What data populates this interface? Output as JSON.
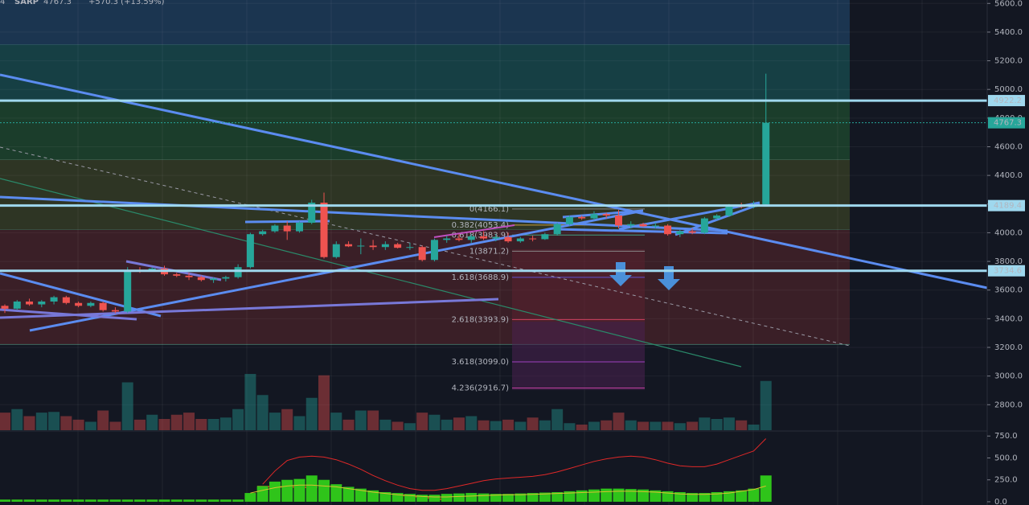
{
  "chart_data": {
    "type": "candlestick",
    "title": "SARP",
    "last_price": "4767.3",
    "change": "+570.3 (+13.59%)",
    "interval": "4",
    "ylim": [
      2622,
      5624
    ],
    "yticks": [
      {
        "value": 2800,
        "label": "2800.0"
      },
      {
        "value": 3000,
        "label": "3000.0"
      },
      {
        "value": 3200,
        "label": "3200.0"
      },
      {
        "value": 3400,
        "label": "3400.0"
      },
      {
        "value": 3600,
        "label": "3600.0"
      },
      {
        "value": 3800,
        "label": "3800.0"
      },
      {
        "value": 4000,
        "label": "4000.0"
      },
      {
        "value": 4200,
        "label": "4200.0"
      },
      {
        "value": 4400,
        "label": "4400.0"
      },
      {
        "value": 4600,
        "label": "4600.0"
      },
      {
        "value": 4800,
        "label": "4800.0"
      },
      {
        "value": 5000,
        "label": "5000.0"
      },
      {
        "value": 5200,
        "label": "5200.0"
      },
      {
        "value": 5400,
        "label": "5400.0"
      },
      {
        "value": 5600,
        "label": "5600.0"
      }
    ],
    "up_color": "#26a69a",
    "down_color": "#ef5350",
    "open": [
      3490,
      3470,
      3520,
      3500,
      3520,
      3550,
      3510,
      3490,
      3510,
      3460,
      3450,
      3740,
      3735,
      3750,
      3710,
      3700,
      3690,
      3670,
      3680,
      3690,
      3760,
      3990,
      4010,
      4050,
      4010,
      4070,
      4210,
      3830,
      3920,
      3905,
      3910,
      3900,
      3920,
      3895,
      3900,
      3810,
      3950,
      3960,
      3950,
      3975,
      3960,
      3970,
      3940,
      3960,
      3955,
      3990,
      4060,
      4110,
      4100,
      4130,
      4120,
      4050,
      4060,
      4045,
      4050,
      3990,
      4010,
      4000,
      4100,
      4120,
      4190,
      4180,
      4197
    ],
    "high": [
      3500,
      3530,
      3540,
      3530,
      3560,
      3560,
      3520,
      3520,
      3520,
      3480,
      3760,
      3760,
      3760,
      3770,
      3720,
      3720,
      3700,
      3690,
      3700,
      3780,
      4000,
      4020,
      4060,
      4080,
      4080,
      4230,
      4280,
      3940,
      3940,
      3960,
      3950,
      3940,
      3930,
      3930,
      3910,
      3960,
      3980,
      3990,
      3990,
      4010,
      3990,
      4000,
      3970,
      3980,
      4000,
      4070,
      4120,
      4120,
      4150,
      4140,
      4160,
      4080,
      4070,
      4070,
      4060,
      4020,
      4030,
      4110,
      4130,
      4200,
      4210,
      4220,
      5110
    ],
    "low": [
      3440,
      3460,
      3490,
      3480,
      3500,
      3500,
      3480,
      3480,
      3450,
      3440,
      3440,
      3720,
      3730,
      3700,
      3690,
      3670,
      3660,
      3650,
      3660,
      3680,
      3750,
      3980,
      4000,
      3950,
      4000,
      4060,
      3820,
      3820,
      3900,
      3850,
      3880,
      3880,
      3890,
      3880,
      3800,
      3800,
      3930,
      3940,
      3930,
      3950,
      3940,
      3930,
      3930,
      3940,
      3950,
      3980,
      4050,
      4090,
      4090,
      4100,
      4030,
      4030,
      4040,
      4030,
      3980,
      3970,
      3990,
      3990,
      4090,
      4110,
      4170,
      4170,
      4190
    ],
    "close": [
      3470,
      3520,
      3500,
      3520,
      3550,
      3510,
      3490,
      3510,
      3460,
      3450,
      3740,
      3735,
      3750,
      3710,
      3700,
      3690,
      3670,
      3680,
      3690,
      3760,
      3990,
      4010,
      4050,
      4010,
      4070,
      4210,
      3830,
      3920,
      3905,
      3910,
      3900,
      3920,
      3895,
      3900,
      3810,
      3950,
      3960,
      3950,
      3975,
      3960,
      3970,
      3940,
      3960,
      3955,
      3990,
      4060,
      4110,
      4100,
      4130,
      4120,
      4050,
      4060,
      4045,
      4050,
      3990,
      4010,
      4000,
      4100,
      4120,
      4190,
      4180,
      4197,
      4767.3
    ],
    "volume": [
      25,
      30,
      20,
      25,
      26,
      20,
      15,
      12,
      28,
      12,
      68,
      15,
      22,
      16,
      22,
      25,
      16,
      16,
      18,
      30,
      80,
      50,
      25,
      30,
      20,
      46,
      78,
      25,
      15,
      28,
      28,
      15,
      12,
      10,
      25,
      22,
      15,
      18,
      20,
      14,
      13,
      15,
      12,
      18,
      14,
      30,
      10,
      8,
      12,
      14,
      25,
      14,
      12,
      12,
      12,
      10,
      12,
      18,
      16,
      18,
      14,
      8,
      70
    ],
    "levels": [
      {
        "value": 4922.2,
        "color": "#9fd8ee",
        "style": "solid"
      },
      {
        "value": 4767.3,
        "color": "#26a69a",
        "style": "dotted"
      },
      {
        "value": 4189.4,
        "color": "#9fd8ee",
        "style": "solid"
      },
      {
        "value": 3734.6,
        "color": "#9fd8ee",
        "style": "solid"
      }
    ],
    "zones": [
      {
        "from": 5624,
        "to": 5310,
        "color": "#1b3550"
      },
      {
        "from": 5310,
        "to": 4922.2,
        "color": "#163f44"
      },
      {
        "from": 4922.2,
        "to": 4510,
        "color": "#1b3d2b"
      },
      {
        "from": 4510,
        "to": 4020,
        "color": "#2e3524"
      },
      {
        "from": 4020,
        "to": 3220,
        "color": "#3a1f27"
      }
    ],
    "fib_levels": [
      {
        "value": 4166.1,
        "label": "0(4166.1)",
        "color": "#888888"
      },
      {
        "value": 4053.4,
        "label": "0.382(4053.4)",
        "color": "#c8a040"
      },
      {
        "value": 3983.9,
        "label": "0.618(3983.9)",
        "color": "#40a080"
      },
      {
        "value": 3871.2,
        "label": "1(3871.2)",
        "color": "#888888"
      },
      {
        "value": 3688.9,
        "label": "1.618(3688.9)",
        "color": "#6050d0"
      },
      {
        "value": 3393.9,
        "label": "2.618(3393.9)",
        "color": "#d04060"
      },
      {
        "value": 3099.0,
        "label": "3.618(3099.0)",
        "color": "#a040c0"
      },
      {
        "value": 2916.7,
        "label": "4.236(2916.7)",
        "color": "#c040a0"
      }
    ],
    "indicator": {
      "ylim": [
        -37,
        798
      ],
      "yticks": [
        {
          "value": 0,
          "label": "0.0"
        },
        {
          "value": 250,
          "label": "250.0"
        },
        {
          "value": 500,
          "label": "500.0"
        },
        {
          "value": 750,
          "label": "750.0"
        }
      ],
      "histogram_color": "#2fc41a",
      "histogram": [
        25,
        25,
        25,
        25,
        25,
        25,
        25,
        25,
        25,
        25,
        25,
        25,
        25,
        25,
        25,
        25,
        25,
        25,
        25,
        25,
        100,
        180,
        230,
        250,
        260,
        300,
        250,
        200,
        170,
        150,
        130,
        110,
        100,
        90,
        80,
        80,
        90,
        95,
        100,
        95,
        90,
        90,
        95,
        100,
        105,
        110,
        120,
        130,
        140,
        150,
        150,
        145,
        140,
        130,
        120,
        110,
        100,
        100,
        110,
        120,
        130,
        150,
        300
      ],
      "lines": [
        {
          "color": "#e02828",
          "values": [
            null,
            null,
            null,
            null,
            null,
            null,
            null,
            null,
            null,
            null,
            null,
            null,
            null,
            null,
            null,
            null,
            null,
            null,
            null,
            null,
            null,
            200,
            350,
            470,
            510,
            520,
            510,
            480,
            430,
            370,
            300,
            240,
            190,
            150,
            130,
            130,
            150,
            180,
            210,
            240,
            260,
            270,
            280,
            290,
            310,
            340,
            380,
            420,
            460,
            490,
            510,
            520,
            510,
            480,
            440,
            410,
            400,
            400,
            430,
            480,
            530,
            580,
            720
          ]
        },
        {
          "color": "#d8c030",
          "values": [
            null,
            null,
            null,
            null,
            null,
            null,
            null,
            null,
            null,
            null,
            null,
            null,
            null,
            null,
            null,
            null,
            null,
            null,
            null,
            null,
            100,
            130,
            160,
            180,
            190,
            190,
            180,
            170,
            150,
            130,
            110,
            95,
            80,
            70,
            60,
            55,
            55,
            60,
            65,
            70,
            75,
            80,
            80,
            85,
            90,
            95,
            100,
            105,
            110,
            115,
            120,
            120,
            115,
            110,
            100,
            90,
            85,
            85,
            90,
            100,
            120,
            140,
            180
          ]
        }
      ]
    }
  }
}
